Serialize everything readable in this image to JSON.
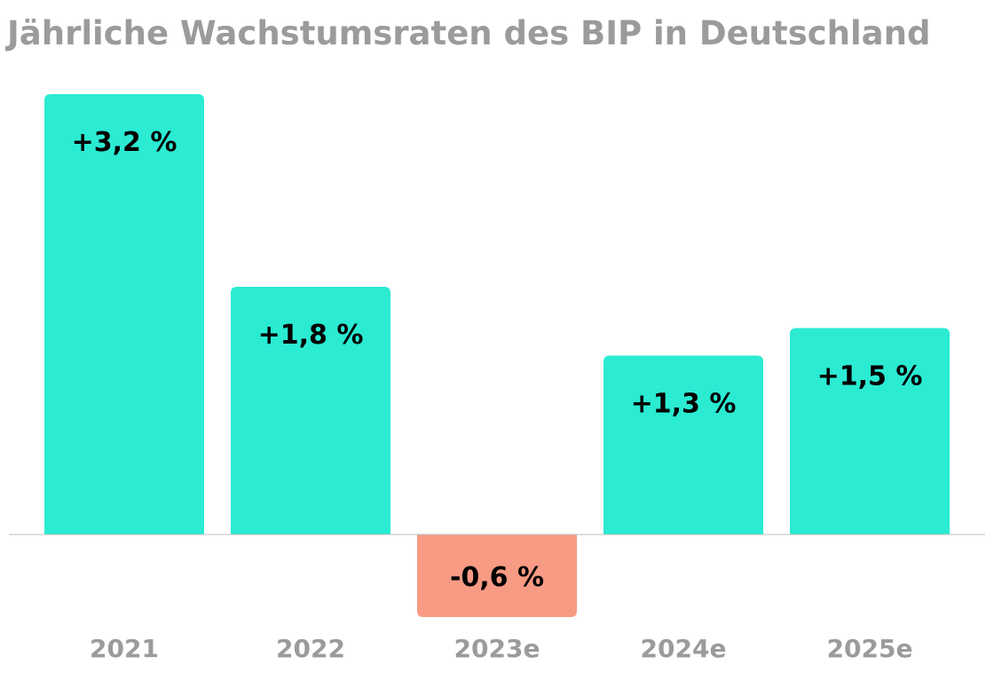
{
  "chart_data": {
    "type": "bar",
    "title": "Jährliche Wachstumsraten des BIP in Deutschland",
    "categories": [
      "2021",
      "2022",
      "2023e",
      "2024e",
      "2025e"
    ],
    "values": [
      3.2,
      1.8,
      -0.6,
      1.3,
      1.5
    ],
    "data_labels": [
      "+3,2 %",
      "+1,8 %",
      "-0,6 %",
      "+1,3 %",
      "+1,5 %"
    ],
    "xlabel": "",
    "ylabel": "",
    "ylim": [
      -0.6,
      3.2
    ],
    "grid": false,
    "legend": "none",
    "colors": {
      "positive": "#2bebd3",
      "negative": "#f89b84",
      "axis": "#bdbdbd",
      "title": "#9b9b9b",
      "tick": "#9b9b9b",
      "label": "#000000"
    }
  }
}
